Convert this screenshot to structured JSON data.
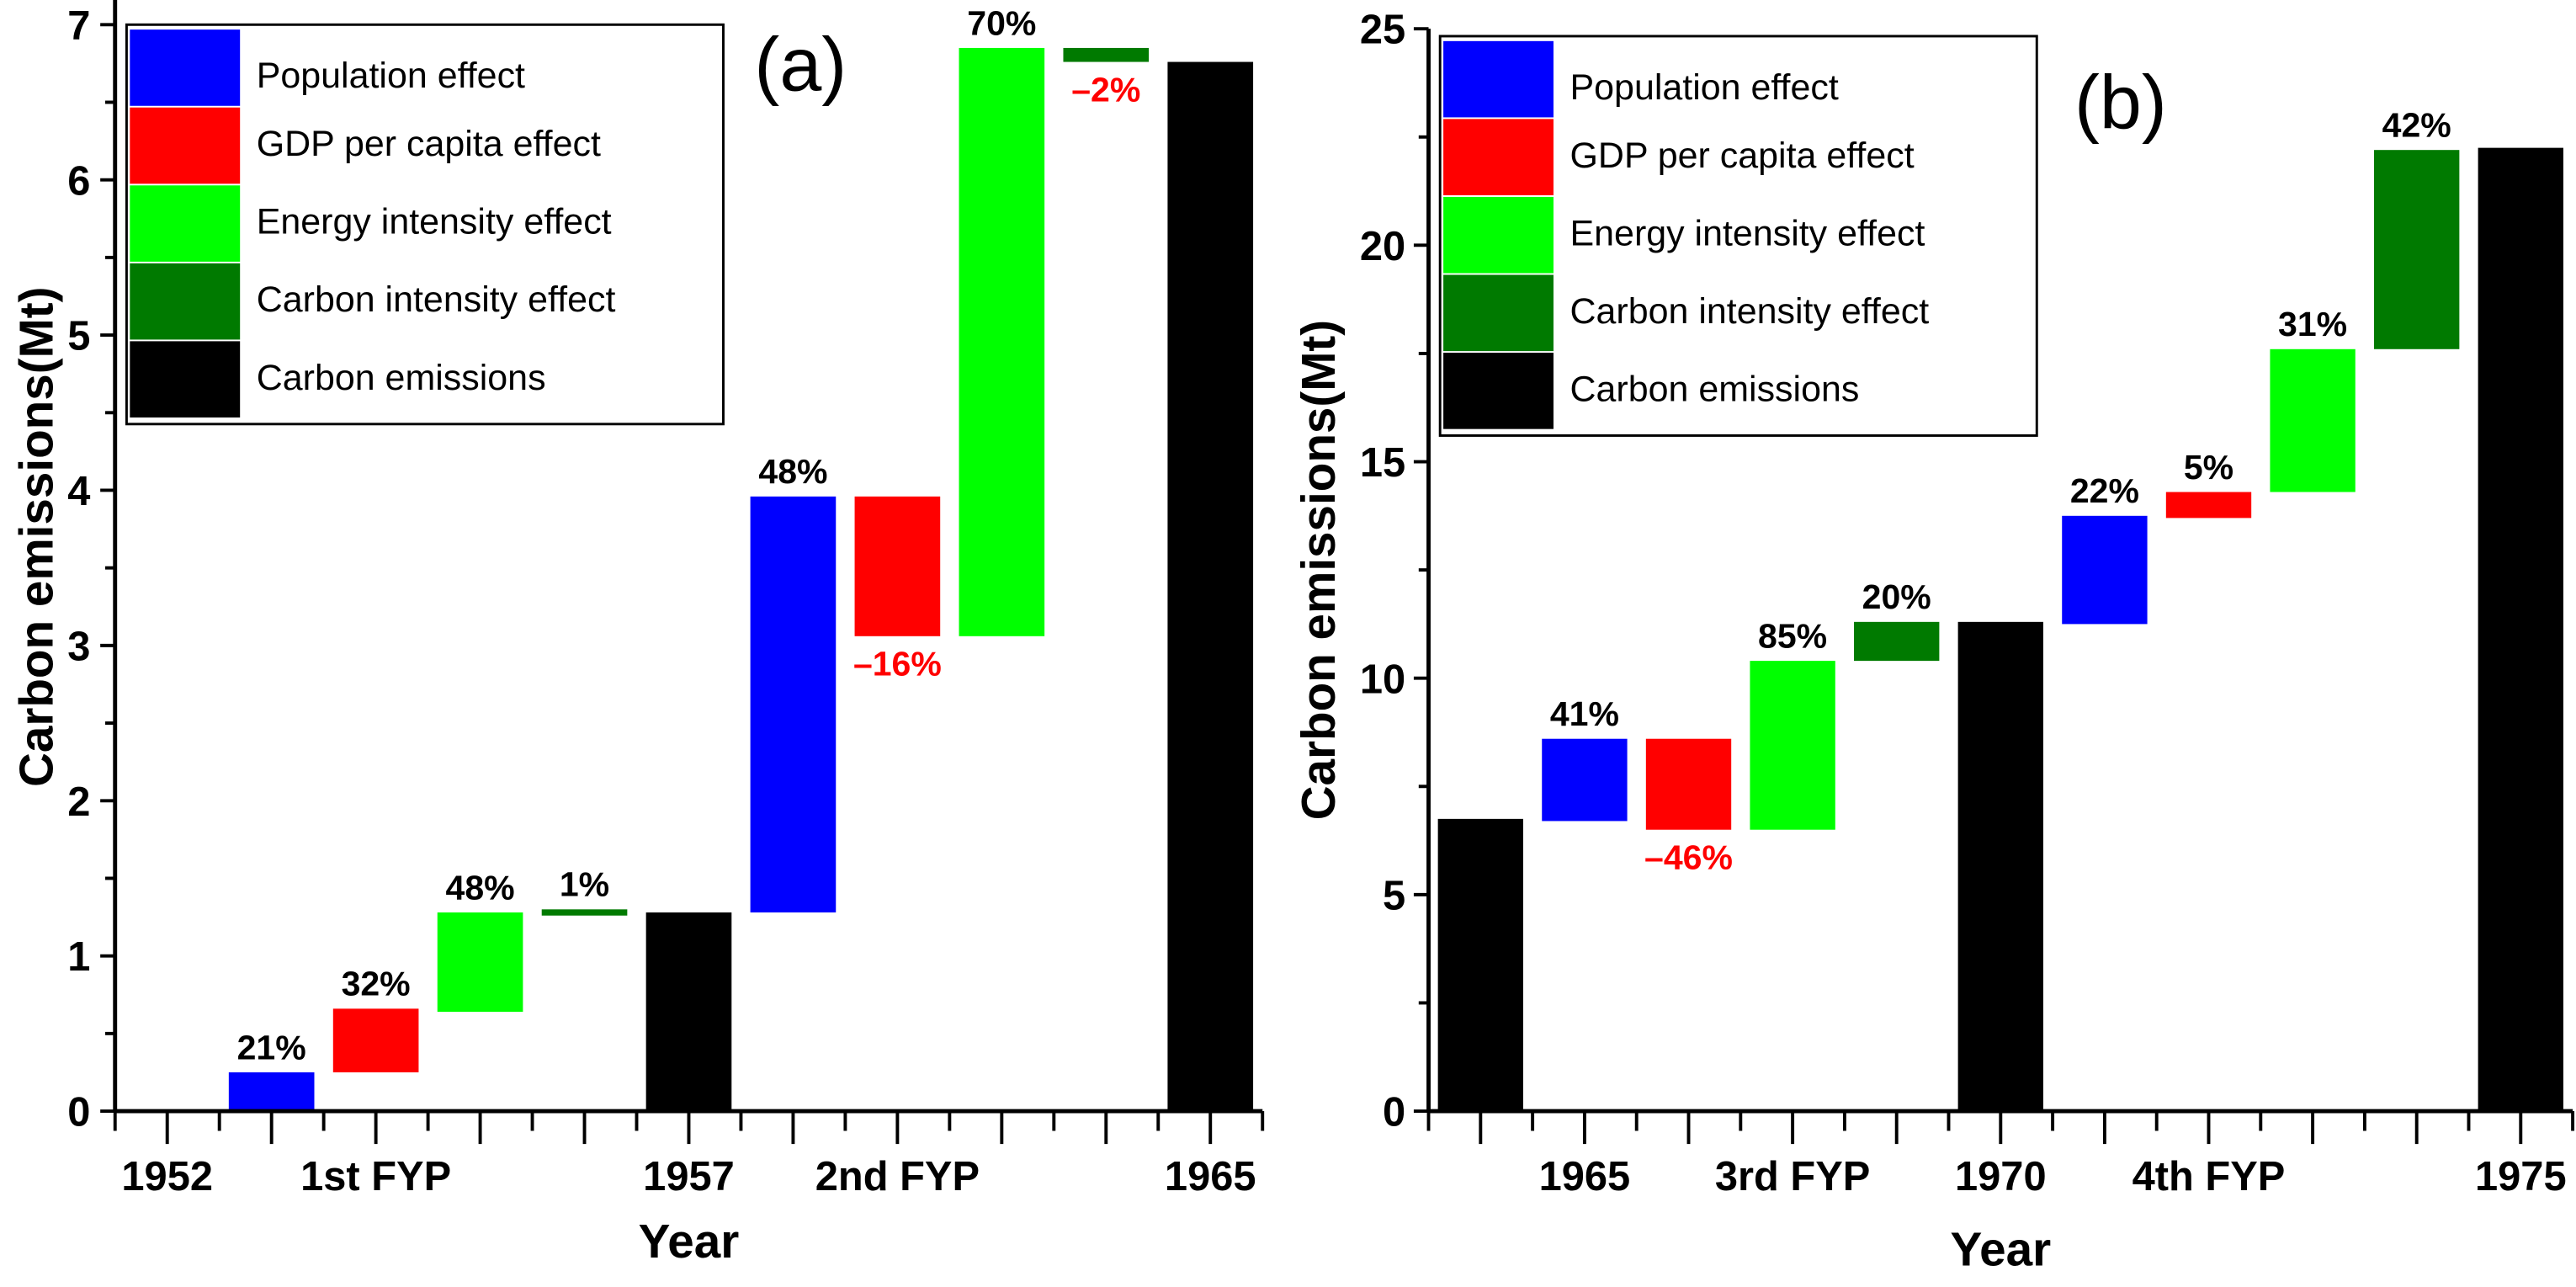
{
  "colors": {
    "population": "#0000ff",
    "gdp": "#ff0000",
    "energy": "#00ff00",
    "carbon_intensity": "#007a00",
    "emissions": "#000000",
    "negative_label": "#ff0000",
    "positive_label": "#000000"
  },
  "chart_data": [
    {
      "type": "bar",
      "subtype": "waterfall",
      "panel_label": "(a)",
      "xlabel": "Year",
      "ylabel": "Carbon emissions(Mt)",
      "ylim": [
        0,
        7.4
      ],
      "yticks": [
        "0",
        "1",
        "2",
        "3",
        "4",
        "5",
        "6",
        "7"
      ],
      "ytick_values": [
        0,
        1,
        2,
        3,
        4,
        5,
        6,
        7
      ],
      "xlim": [
        -0.5,
        10.5
      ],
      "xticks": [
        {
          "label": "1952",
          "x": 0
        },
        {
          "label": "1st FYP",
          "x": 2
        },
        {
          "label": "1957",
          "x": 5
        },
        {
          "label": "2nd FYP",
          "x": 7
        },
        {
          "label": "1965",
          "x": 10
        }
      ],
      "legend": {
        "placement": "top-left",
        "entries": [
          {
            "key": "population",
            "label": "Population effect"
          },
          {
            "key": "gdp",
            "label": "GDP per capita effect"
          },
          {
            "key": "energy",
            "label": "Energy intensity effect"
          },
          {
            "key": "carbon_intensity",
            "label": "Carbon intensity effect"
          },
          {
            "key": "emissions",
            "label": "Carbon emissions"
          }
        ]
      },
      "bars": [
        {
          "x": 1,
          "key": "population",
          "start": 0,
          "end": 0.25,
          "pct": "21%"
        },
        {
          "x": 2,
          "key": "gdp",
          "start": 0.25,
          "end": 0.66,
          "pct": "32%"
        },
        {
          "x": 3,
          "key": "energy",
          "start": 0.64,
          "end": 1.28,
          "pct": "48%"
        },
        {
          "x": 4,
          "key": "carbon_intensity",
          "start": 1.26,
          "end": 1.3,
          "pct": "1%"
        },
        {
          "x": 5,
          "key": "emissions",
          "start": 0,
          "end": 1.28,
          "pct": null
        },
        {
          "x": 6,
          "key": "population",
          "start": 1.28,
          "end": 3.96,
          "pct": "48%"
        },
        {
          "x": 7,
          "key": "gdp",
          "start": 3.96,
          "end": 3.06,
          "pct": "–16%"
        },
        {
          "x": 8,
          "key": "energy",
          "start": 3.06,
          "end": 6.85,
          "pct": "70%"
        },
        {
          "x": 9,
          "key": "carbon_intensity",
          "start": 6.85,
          "end": 6.76,
          "pct": "–2%"
        },
        {
          "x": 10,
          "key": "emissions",
          "start": 0,
          "end": 6.76,
          "pct": null
        }
      ]
    },
    {
      "type": "bar",
      "subtype": "waterfall",
      "panel_label": "(b)",
      "xlabel": "Year",
      "ylabel": "Carbon emissions(Mt)",
      "ylim": [
        0,
        25
      ],
      "yticks": [
        "0",
        "5",
        "10",
        "15",
        "20",
        "25"
      ],
      "ytick_values": [
        0,
        5,
        10,
        15,
        20,
        25
      ],
      "xlim": [
        -0.5,
        10.5
      ],
      "xticks": [
        {
          "label": "1965",
          "x": 1
        },
        {
          "label": "3rd FYP",
          "x": 3
        },
        {
          "label": "1970",
          "x": 5
        },
        {
          "label": "4th FYP",
          "x": 7
        },
        {
          "label": "1975",
          "x": 10
        }
      ],
      "legend": {
        "placement": "top-left",
        "entries": [
          {
            "key": "population",
            "label": "Population effect"
          },
          {
            "key": "gdp",
            "label": "GDP per capita effect"
          },
          {
            "key": "energy",
            "label": "Energy intensity effect"
          },
          {
            "key": "carbon_intensity",
            "label": "Carbon intensity effect"
          },
          {
            "key": "emissions",
            "label": "Carbon emissions"
          }
        ]
      },
      "bars": [
        {
          "x": 0,
          "key": "emissions",
          "start": 0,
          "end": 6.75,
          "pct": null
        },
        {
          "x": 1,
          "key": "population",
          "start": 6.7,
          "end": 8.6,
          "pct": "41%"
        },
        {
          "x": 2,
          "key": "gdp",
          "start": 8.6,
          "end": 6.5,
          "pct": "–46%"
        },
        {
          "x": 3,
          "key": "energy",
          "start": 6.5,
          "end": 10.4,
          "pct": "85%"
        },
        {
          "x": 4,
          "key": "carbon_intensity",
          "start": 10.4,
          "end": 11.3,
          "pct": "20%"
        },
        {
          "x": 5,
          "key": "emissions",
          "start": 0,
          "end": 11.3,
          "pct": null
        },
        {
          "x": 6,
          "key": "population",
          "start": 11.25,
          "end": 13.75,
          "pct": "22%"
        },
        {
          "x": 7,
          "key": "gdp",
          "start": 13.7,
          "end": 14.3,
          "pct": "5%"
        },
        {
          "x": 8,
          "key": "energy",
          "start": 14.3,
          "end": 17.6,
          "pct": "31%"
        },
        {
          "x": 9,
          "key": "carbon_intensity",
          "start": 17.6,
          "end": 22.2,
          "pct": "42%"
        },
        {
          "x": 10,
          "key": "emissions",
          "start": 0,
          "end": 22.25,
          "pct": null
        }
      ]
    }
  ]
}
